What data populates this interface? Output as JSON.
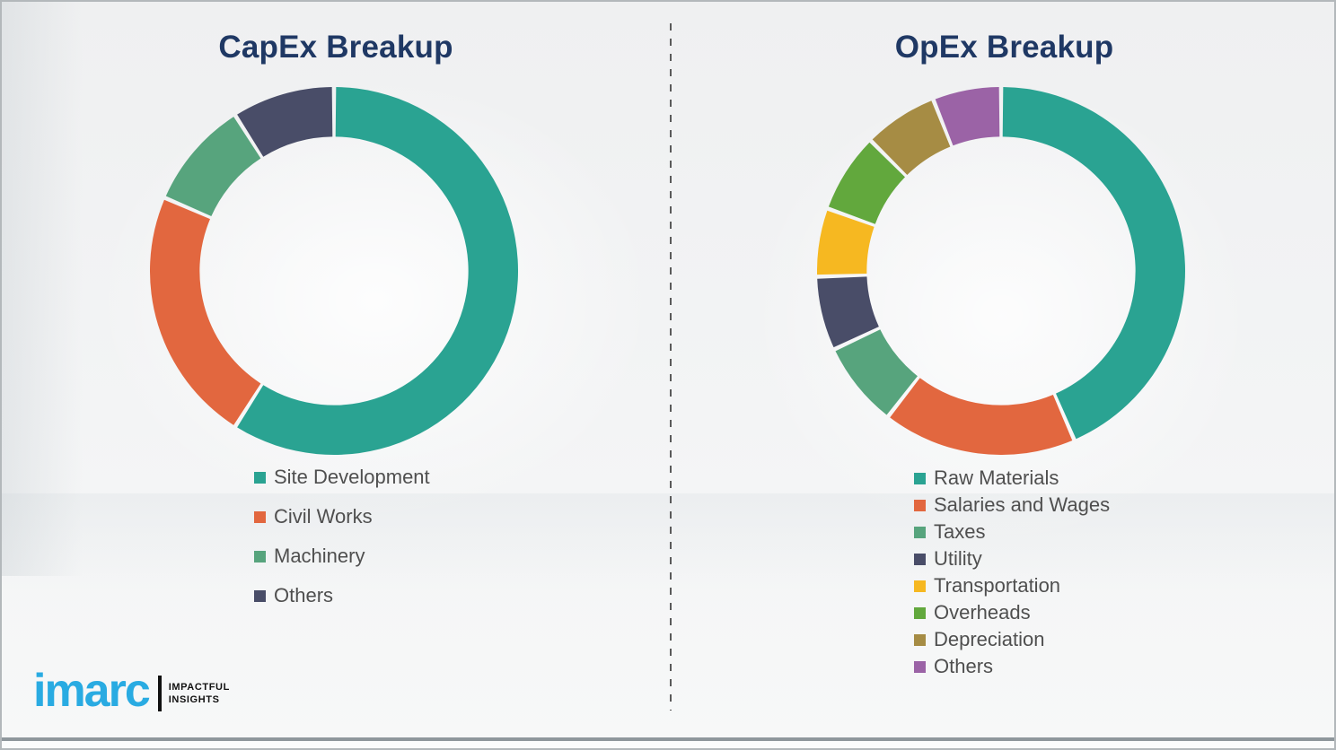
{
  "logo": {
    "brand": "imarc",
    "tagline_line1": "IMPACTFUL",
    "tagline_line2": "INSIGHTS",
    "brand_color": "#29abe2"
  },
  "divider": {
    "style": "vertical-dashed",
    "color": "#5a5a5a"
  },
  "colors": {
    "title_text": "#1f3864",
    "legend_text": "#4f4f4f",
    "background": "#f1f2f3",
    "teal": "#2aa392",
    "orange": "#e2673f",
    "sea_green": "#57a47d",
    "navy": "#494d68",
    "yellow": "#f6b821",
    "green": "#62a83d",
    "khaki": "#a68c44",
    "purple": "#9b63a6"
  },
  "chart_data": [
    {
      "type": "pie",
      "subtype": "donut",
      "title": "CapEx Breakup",
      "categories": [
        "Site Development",
        "Civil Works",
        "Machinery",
        "Others"
      ],
      "values": [
        59,
        22.5,
        9.5,
        9
      ],
      "value_format": "percent (estimated from arc angles; no data labels shown)",
      "colors": [
        "#2aa392",
        "#e2673f",
        "#57a47d",
        "#494d68"
      ],
      "start_angle_deg": 0,
      "direction": "clockwise",
      "inner_radius_ratio": 0.73,
      "legend_position": "below-left",
      "data_labels": false
    },
    {
      "type": "pie",
      "subtype": "donut",
      "title": "OpEx Breakup",
      "categories": [
        "Raw Materials",
        "Salaries and Wages",
        "Taxes",
        "Utility",
        "Transportation",
        "Overheads",
        "Depreciation",
        "Others"
      ],
      "values": [
        43.5,
        17,
        7.5,
        6.5,
        6,
        7,
        6.5,
        6
      ],
      "value_format": "percent (estimated from arc angles; no data labels shown)",
      "colors": [
        "#2aa392",
        "#e2673f",
        "#57a47d",
        "#494d68",
        "#f6b821",
        "#62a83d",
        "#a68c44",
        "#9b63a6"
      ],
      "start_angle_deg": 0,
      "direction": "clockwise",
      "inner_radius_ratio": 0.73,
      "legend_position": "below-left",
      "data_labels": false
    }
  ]
}
